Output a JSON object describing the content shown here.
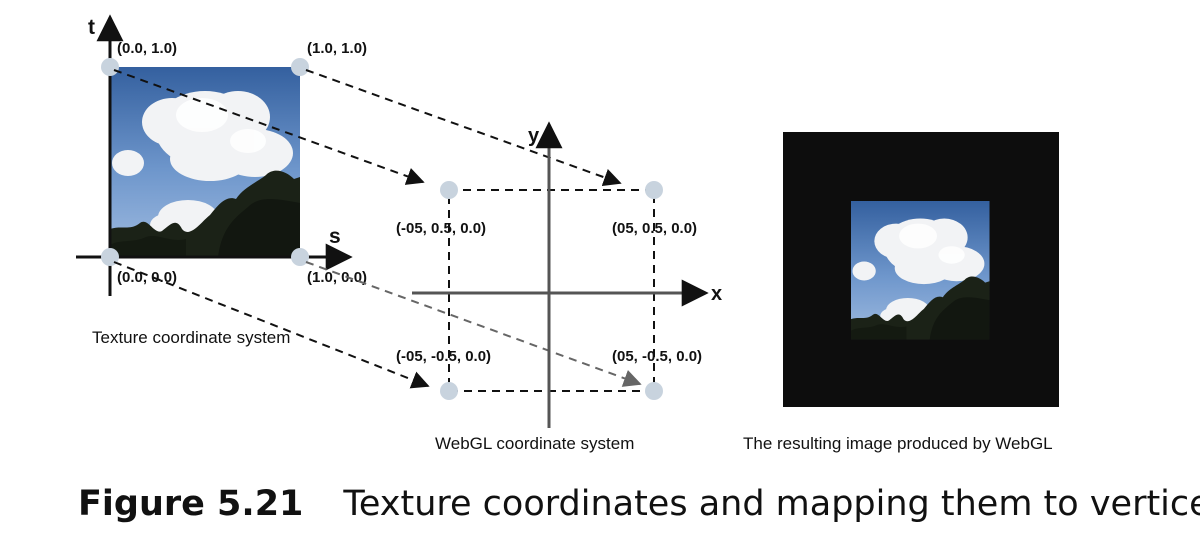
{
  "texture_system": {
    "axis_t": "t",
    "axis_s": "s",
    "labels": {
      "top_left": "(0.0, 1.0)",
      "top_right": "(1.0, 1.0)",
      "bottom_left": "(0.0, 0.0)",
      "bottom_right": "(1.0, 0.0)"
    },
    "caption": "Texture coordinate system"
  },
  "webgl_system": {
    "axis_x": "x",
    "axis_y": "y",
    "labels": {
      "top_left": "(-05, 0.5, 0.0)",
      "top_right": "(05, 0.5, 0.0)",
      "bottom_left": "(-05, -0.5, 0.0)",
      "bottom_right": "(05, -0.5, 0.0)"
    },
    "caption": "WebGL coordinate system"
  },
  "result": {
    "caption": "The resulting image produced by WebGL"
  },
  "figure": {
    "number": "Figure 5.21",
    "title": "Texture coordinates and mapping them to vertices"
  },
  "colors": {
    "vertex_dot": "#c8d3de",
    "axis": "#111111",
    "webgl_axis": "#555555",
    "dashed": "#111111",
    "result_background": "#0d0d0d",
    "sky_top": "#3d6aa8",
    "sky_bottom": "#7fa6d6",
    "cloud": "#f4f4f4",
    "trees": "#1d2418"
  }
}
